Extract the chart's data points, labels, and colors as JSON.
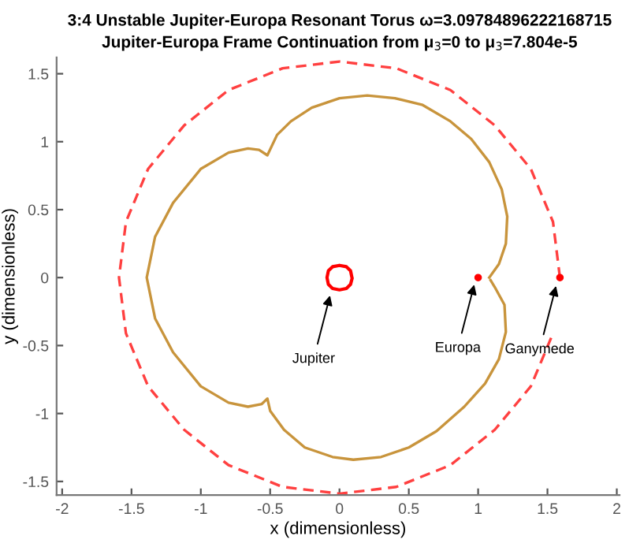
{
  "chart_data": {
    "type": "line",
    "title": "3:4 Unstable Jupiter-Europa Resonant Torus ω=3.09784896222168715",
    "subtitle": "Jupiter-Europa Frame Continuation from μ$_{3}$=0 to μ$_{3}$=7.804e-5",
    "xlabel": "x (dimensionless)",
    "ylabel": "y (dimensionless)",
    "xlim": [
      -2.04,
      2.02
    ],
    "ylim": [
      -1.6,
      1.62
    ],
    "xticks": [
      -2,
      -1.5,
      -1,
      -0.5,
      0,
      0.5,
      1,
      1.5,
      2
    ],
    "yticks": [
      -1.5,
      -1,
      -0.5,
      0,
      0.5,
      1,
      1.5
    ],
    "grid": false,
    "legend": false,
    "series": [
      {
        "line_style": "solid",
        "color": "#c8943c",
        "x": [
          1.08,
          1.15,
          1.2,
          1.21,
          1.17,
          1.08,
          0.95,
          0.8,
          0.6,
          0.4,
          0.2,
          0.0,
          -0.2,
          -0.35,
          -0.45,
          -0.52,
          -0.58,
          -0.66,
          -0.8,
          -1.0,
          -1.2,
          -1.33,
          -1.39,
          -1.33,
          -1.2,
          -1.0,
          -0.8,
          -0.66,
          -0.56,
          -0.52,
          -0.5,
          -0.4,
          -0.25,
          -0.05,
          0.1,
          0.3,
          0.5,
          0.7,
          0.9,
          1.05,
          1.15,
          1.2,
          1.19,
          1.12,
          1.09
        ],
        "values": [
          0.0,
          0.1,
          0.25,
          0.45,
          0.65,
          0.85,
          1.02,
          1.15,
          1.27,
          1.32,
          1.34,
          1.32,
          1.25,
          1.15,
          1.05,
          0.9,
          0.94,
          0.95,
          0.92,
          0.8,
          0.55,
          0.3,
          0.0,
          -0.3,
          -0.55,
          -0.8,
          -0.92,
          -0.95,
          -0.93,
          -0.89,
          -0.98,
          -1.12,
          -1.25,
          -1.32,
          -1.34,
          -1.32,
          -1.25,
          -1.13,
          -0.95,
          -0.78,
          -0.6,
          -0.4,
          -0.2,
          -0.07,
          -0.02
        ]
      },
      {
        "line_style": "dashed",
        "color": "#ff4040",
        "x": [
          1.59,
          1.54,
          1.38,
          1.12,
          0.8,
          0.41,
          0.0,
          -0.41,
          -0.8,
          -1.12,
          -1.38,
          -1.54,
          -1.59,
          -1.54,
          -1.38,
          -1.12,
          -0.8,
          -0.41,
          0.0,
          0.41,
          0.8,
          1.12,
          1.38,
          1.54
        ],
        "values": [
          0.0,
          0.41,
          0.8,
          1.12,
          1.38,
          1.54,
          1.59,
          1.54,
          1.38,
          1.12,
          0.8,
          0.41,
          0.0,
          -0.41,
          -0.8,
          -1.12,
          -1.38,
          -1.54,
          -1.59,
          -1.54,
          -1.38,
          -1.12,
          -0.8,
          -0.41
        ]
      },
      {
        "line_style": "solid",
        "color": "#ff0000",
        "x": [
          0.09,
          0.08,
          0.05,
          0.0,
          -0.05,
          -0.08,
          -0.09,
          -0.08,
          -0.05,
          0.0,
          0.05,
          0.08,
          0.09
        ],
        "values": [
          0.0,
          0.05,
          0.08,
          0.09,
          0.08,
          0.05,
          0.0,
          -0.05,
          -0.08,
          -0.09,
          -0.08,
          -0.05,
          -0.01
        ]
      },
      {
        "type": "scatter",
        "marker": "circle",
        "color": "#ff0000",
        "x": [
          1.0,
          1.59
        ],
        "values": [
          0.0,
          0.0
        ]
      }
    ],
    "annotations": [
      {
        "text": "Jupiter",
        "x": -0.06,
        "y": -0.1
      },
      {
        "text": "Europa",
        "x": 0.98,
        "y": -0.02
      },
      {
        "text": "Ganymede",
        "x": 1.57,
        "y": -0.03
      }
    ]
  }
}
